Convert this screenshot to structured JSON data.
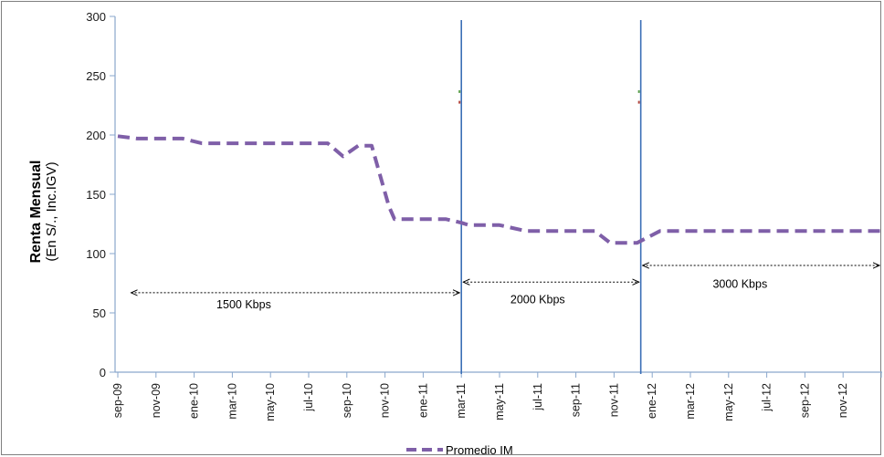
{
  "chart_data": {
    "type": "line",
    "title": "",
    "ylabel_bold": "Renta Mensual",
    "ylabel_sub": "(En S/., Inc.IGV)",
    "xlabel": "",
    "ylim": [
      0,
      300
    ],
    "yticks": [
      0,
      50,
      100,
      150,
      200,
      250,
      300
    ],
    "grid": false,
    "legend_position": "bottom",
    "x_labels": [
      "sep-09",
      "nov-09",
      "ene-10",
      "mar-10",
      "may-10",
      "jul-10",
      "sep-10",
      "nov-10",
      "ene-11",
      "mar-11",
      "may-11",
      "jul-11",
      "sep-11",
      "nov-11",
      "ene-12",
      "mar-12",
      "may-12",
      "jul-12",
      "sep-12",
      "nov-12"
    ],
    "series": [
      {
        "name": "Promedio IM",
        "color": "#7f5fa8",
        "style": "dashed",
        "points": [
          {
            "x": 0,
            "y": 199
          },
          {
            "x": 0.5,
            "y": 197
          },
          {
            "x": 1.7,
            "y": 197
          },
          {
            "x": 2.2,
            "y": 193
          },
          {
            "x": 5.5,
            "y": 193
          },
          {
            "x": 5.9,
            "y": 182
          },
          {
            "x": 6.3,
            "y": 191
          },
          {
            "x": 6.65,
            "y": 191
          },
          {
            "x": 7.1,
            "y": 140
          },
          {
            "x": 7.25,
            "y": 129
          },
          {
            "x": 8.6,
            "y": 129
          },
          {
            "x": 9.0,
            "y": 126
          },
          {
            "x": 9.2,
            "y": 124
          },
          {
            "x": 10.0,
            "y": 124
          },
          {
            "x": 10.7,
            "y": 119
          },
          {
            "x": 12.5,
            "y": 119
          },
          {
            "x": 12.9,
            "y": 109
          },
          {
            "x": 13.6,
            "y": 109
          },
          {
            "x": 14.2,
            "y": 119
          },
          {
            "x": 20.0,
            "y": 119
          }
        ]
      }
    ],
    "vertical_lines": [
      {
        "x": 9.0,
        "color": "#3b6fb6"
      },
      {
        "x": 13.7,
        "color": "#3b6fb6"
      }
    ],
    "annotations": [
      {
        "text": "1500 Kbps",
        "x_from": 0.3,
        "x_to": 9.0,
        "y": 67,
        "text_x": 3.3,
        "text_y": 54
      },
      {
        "text": "2000 Kbps",
        "x_from": 9.0,
        "x_to": 13.7,
        "y": 76,
        "text_x": 11.0,
        "text_y": 58
      },
      {
        "text": "3000 Kbps",
        "x_from": 13.7,
        "x_to": 20.0,
        "y": 90,
        "text_x": 16.3,
        "text_y": 71
      }
    ]
  },
  "legend": {
    "label": "Promedio IM"
  }
}
